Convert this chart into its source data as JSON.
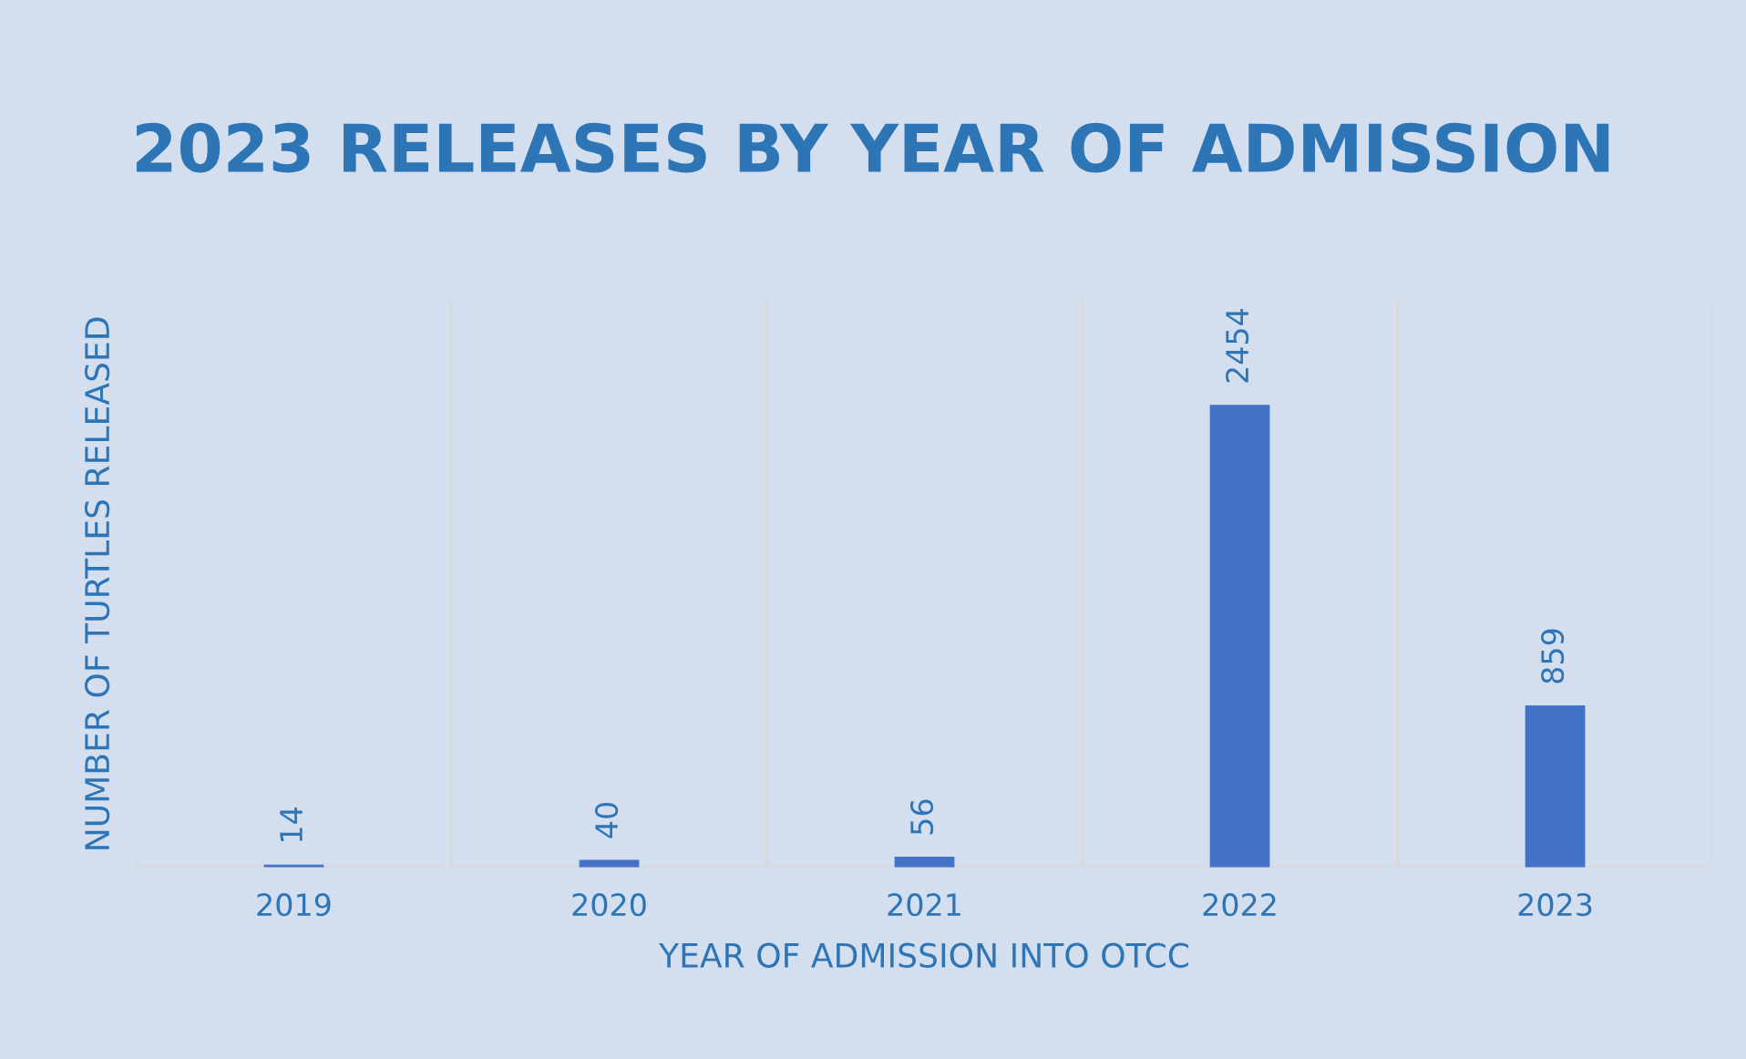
{
  "chart_data": {
    "type": "bar",
    "title": "2023 RELEASES BY YEAR OF ADMISSION",
    "xlabel": "YEAR OF ADMISSION INTO OTCC",
    "ylabel": "NUMBER OF TURTLES RELEASED",
    "categories": [
      "2019",
      "2020",
      "2021",
      "2022",
      "2023"
    ],
    "values": [
      14,
      40,
      56,
      2454,
      859
    ],
    "color": "#4472c4",
    "data_labels": true,
    "grid": "x",
    "legend": false,
    "tick_labels": "x"
  }
}
